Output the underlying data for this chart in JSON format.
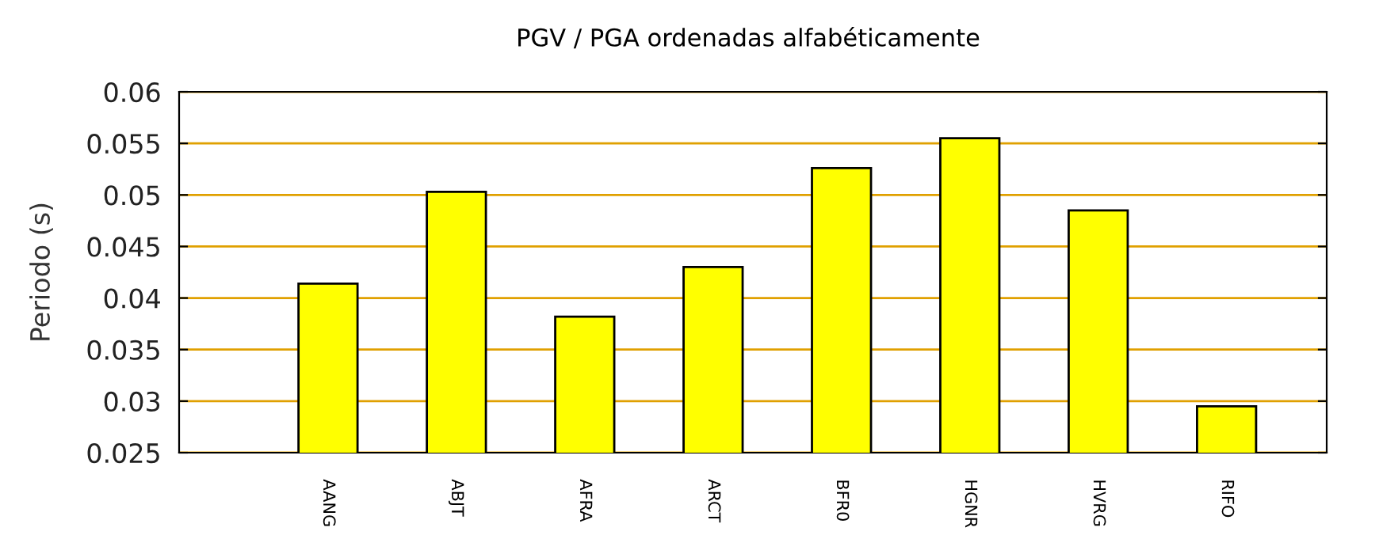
{
  "chart_data": {
    "type": "bar",
    "title": "PGV / PGA ordenadas alfabéticamente",
    "ylabel": "Periodo (s)",
    "categories": [
      "AANG",
      "ABJT",
      "AFRA",
      "ARCT",
      "BFR0",
      "HGNR",
      "HVRG",
      "RIFO"
    ],
    "values": [
      0.0414,
      0.0503,
      0.0382,
      0.043,
      0.0526,
      0.0555,
      0.0485,
      0.0295
    ],
    "color": "#ffff00",
    "ylim": [
      0.025,
      0.06
    ],
    "yticks": [
      0.025,
      0.03,
      0.035,
      0.04,
      0.045,
      0.05,
      0.055,
      0.06
    ],
    "grid": "y"
  }
}
